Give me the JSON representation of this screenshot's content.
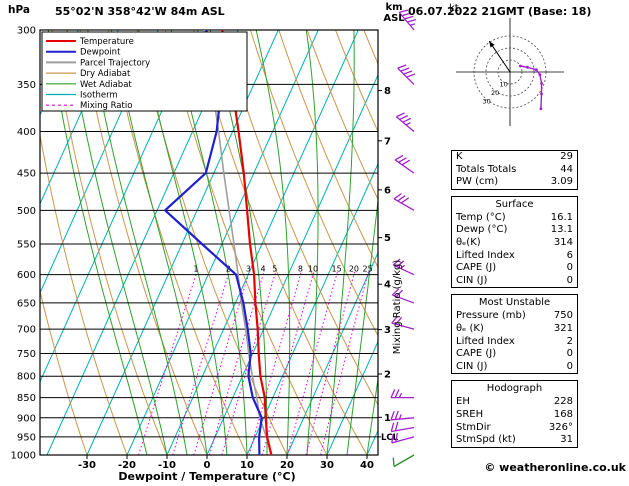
{
  "header": {
    "left_title": "55°02'N 358°42'W 84m ASL",
    "right_title": "06.07.2022 21GMT (Base: 18)"
  },
  "footer": {
    "copyright": "© weatheronline.co.uk"
  },
  "axes": {
    "pressure_unit": "hPa",
    "pressure_ticks": [
      300,
      350,
      400,
      450,
      500,
      550,
      600,
      650,
      700,
      750,
      800,
      850,
      900,
      950,
      1000
    ],
    "altitude_unit_lines": [
      "km",
      "ASL"
    ],
    "km_ticks": [
      8,
      7,
      6,
      5,
      4,
      3,
      2,
      1
    ],
    "lcl_label": "LCL",
    "x_label": "Dewpoint / Temperature (°C)",
    "x_ticks": [
      -30,
      -20,
      -10,
      0,
      10,
      20,
      30,
      40
    ],
    "mixing_ratio_label": "Mixing Ratio (g/kg)"
  },
  "legend": [
    {
      "label": "Temperature",
      "color": "#e60000",
      "width": 2,
      "dash": ""
    },
    {
      "label": "Dewpoint",
      "color": "#2020d0",
      "width": 2,
      "dash": ""
    },
    {
      "label": "Parcel Trajectory",
      "color": "#9e9e9e",
      "width": 2,
      "dash": ""
    },
    {
      "label": "Dry Adiabat",
      "color": "#c9964f",
      "width": 1.2,
      "dash": ""
    },
    {
      "label": "Wet Adiabat",
      "color": "#2fa12f",
      "width": 1.2,
      "dash": ""
    },
    {
      "label": "Isotherm",
      "color": "#00b0b0",
      "width": 1.2,
      "dash": ""
    },
    {
      "label": "Mixing Ratio",
      "color": "#e800e8",
      "width": 1.2,
      "dash": "3,3"
    }
  ],
  "hodograph": {
    "unit_label": "kt",
    "rings_kt": [
      10,
      20,
      30
    ],
    "storm_dir_deg": 326,
    "storm_speed_kt": 31,
    "trace": [
      {
        "dir": 240,
        "spd": 10
      },
      {
        "dir": 255,
        "spd": 15
      },
      {
        "dir": 265,
        "spd": 22
      },
      {
        "dir": 275,
        "spd": 25
      },
      {
        "dir": 290,
        "spd": 28
      },
      {
        "dir": 305,
        "spd": 32
      },
      {
        "dir": 320,
        "spd": 40
      }
    ]
  },
  "stats": {
    "boxes": [
      {
        "title": "",
        "rows": [
          [
            "K",
            "29"
          ],
          [
            "Totals Totals",
            "44"
          ],
          [
            "PW (cm)",
            "3.09"
          ]
        ]
      },
      {
        "title": "Surface",
        "rows": [
          [
            "Temp (°C)",
            "16.1"
          ],
          [
            "Dewp (°C)",
            "13.1"
          ],
          [
            "θₑ(K)",
            "314"
          ],
          [
            "Lifted Index",
            "6"
          ],
          [
            "CAPE (J)",
            "0"
          ],
          [
            "CIN (J)",
            "0"
          ]
        ]
      },
      {
        "title": "Most Unstable",
        "rows": [
          [
            "Pressure (mb)",
            "750"
          ],
          [
            "θₑ (K)",
            "321"
          ],
          [
            "Lifted Index",
            "2"
          ],
          [
            "CAPE (J)",
            "0"
          ],
          [
            "CIN (J)",
            "0"
          ]
        ]
      },
      {
        "title": "Hodograph",
        "rows": [
          [
            "EH",
            "228"
          ],
          [
            "SREH",
            "168"
          ],
          [
            "StmDir",
            "326°"
          ],
          [
            "StmSpd (kt)",
            "31"
          ]
        ]
      }
    ]
  },
  "chart_data": {
    "type": "line",
    "diagram": "skew-t log-p sounding",
    "title": "55°02'N 358°42'W 84m ASL — 06.07.2022 21GMT (Base: 18)",
    "x_axis": {
      "label": "Dewpoint / Temperature (°C)",
      "ticks": [
        -30,
        -20,
        -10,
        0,
        10,
        20,
        30,
        40
      ]
    },
    "y_axis": {
      "label": "hPa",
      "scale": "log",
      "range": [
        1000,
        300
      ],
      "ticks": [
        300,
        350,
        400,
        450,
        500,
        550,
        600,
        650,
        700,
        750,
        800,
        850,
        900,
        950,
        1000
      ]
    },
    "lcl_pressure": 950,
    "series": [
      {
        "name": "Temperature",
        "color": "#e60000",
        "width": 2.2,
        "points_p_T": [
          [
            1000,
            16.1
          ],
          [
            950,
            13
          ],
          [
            900,
            10.5
          ],
          [
            850,
            8
          ],
          [
            800,
            4.5
          ],
          [
            750,
            1.5
          ],
          [
            700,
            -1.5
          ],
          [
            650,
            -5
          ],
          [
            600,
            -8.5
          ],
          [
            550,
            -13
          ],
          [
            500,
            -17.5
          ],
          [
            450,
            -22.5
          ],
          [
            400,
            -28.5
          ],
          [
            350,
            -35.5
          ],
          [
            300,
            -44
          ]
        ]
      },
      {
        "name": "Dewpoint",
        "color": "#2020d0",
        "width": 2.2,
        "points_p_T": [
          [
            1000,
            13.1
          ],
          [
            950,
            11
          ],
          [
            900,
            9.5
          ],
          [
            850,
            5
          ],
          [
            800,
            1.5
          ],
          [
            750,
            -0.5
          ],
          [
            700,
            -4
          ],
          [
            650,
            -8
          ],
          [
            600,
            -13
          ],
          [
            550,
            -25
          ],
          [
            500,
            -38
          ],
          [
            450,
            -32
          ],
          [
            400,
            -34
          ],
          [
            350,
            -38
          ],
          [
            300,
            -48
          ]
        ]
      },
      {
        "name": "Parcel Trajectory",
        "color": "#9e9e9e",
        "width": 1.6,
        "points_p_T": [
          [
            1000,
            16.1
          ],
          [
            950,
            12.8
          ],
          [
            900,
            9
          ],
          [
            850,
            6
          ],
          [
            800,
            2.5
          ],
          [
            750,
            -1
          ],
          [
            700,
            -4.5
          ],
          [
            650,
            -8.5
          ],
          [
            600,
            -12.5
          ],
          [
            550,
            -17
          ],
          [
            500,
            -22
          ],
          [
            450,
            -27.5
          ],
          [
            400,
            -33.5
          ],
          [
            350,
            -40.5
          ],
          [
            300,
            -48.5
          ]
        ]
      }
    ],
    "winds": [
      {
        "p": 300,
        "dir": 320,
        "spd": 45
      },
      {
        "p": 350,
        "dir": 315,
        "spd": 40
      },
      {
        "p": 400,
        "dir": 310,
        "spd": 35
      },
      {
        "p": 450,
        "dir": 305,
        "spd": 30
      },
      {
        "p": 500,
        "dir": 300,
        "spd": 30
      },
      {
        "p": 600,
        "dir": 295,
        "spd": 25
      },
      {
        "p": 650,
        "dir": 290,
        "spd": 20
      },
      {
        "p": 700,
        "dir": 285,
        "spd": 20
      },
      {
        "p": 850,
        "dir": 270,
        "spd": 25
      },
      {
        "p": 900,
        "dir": 265,
        "spd": 25
      },
      {
        "p": 925,
        "dir": 260,
        "spd": 20
      },
      {
        "p": 950,
        "dir": 255,
        "spd": 20
      },
      {
        "p": 1000,
        "dir": 240,
        "spd": 10,
        "color": "#2e8b2e"
      }
    ],
    "background": {
      "isotherm_step_c": 10,
      "dry_adiabats_theta_c": [
        -30,
        -20,
        -10,
        0,
        10,
        20,
        30,
        40,
        50,
        60,
        70,
        80,
        90,
        100,
        110
      ],
      "wet_adiabats_start_c": [
        -15,
        -10,
        -5,
        0,
        5,
        10,
        15,
        20,
        25,
        30,
        35,
        40
      ],
      "mixing_ratio_lines_gkg": [
        1,
        2,
        3,
        4,
        5,
        8,
        10,
        15,
        20,
        25
      ]
    }
  },
  "colors": {
    "isotherm": "#00b0b0",
    "dry_adiabat": "#c9964f",
    "wet_adiabat": "#2fa12f",
    "mixing_ratio": "#e800e8",
    "wind_barb": "#a020d0",
    "grid": "#000000"
  }
}
